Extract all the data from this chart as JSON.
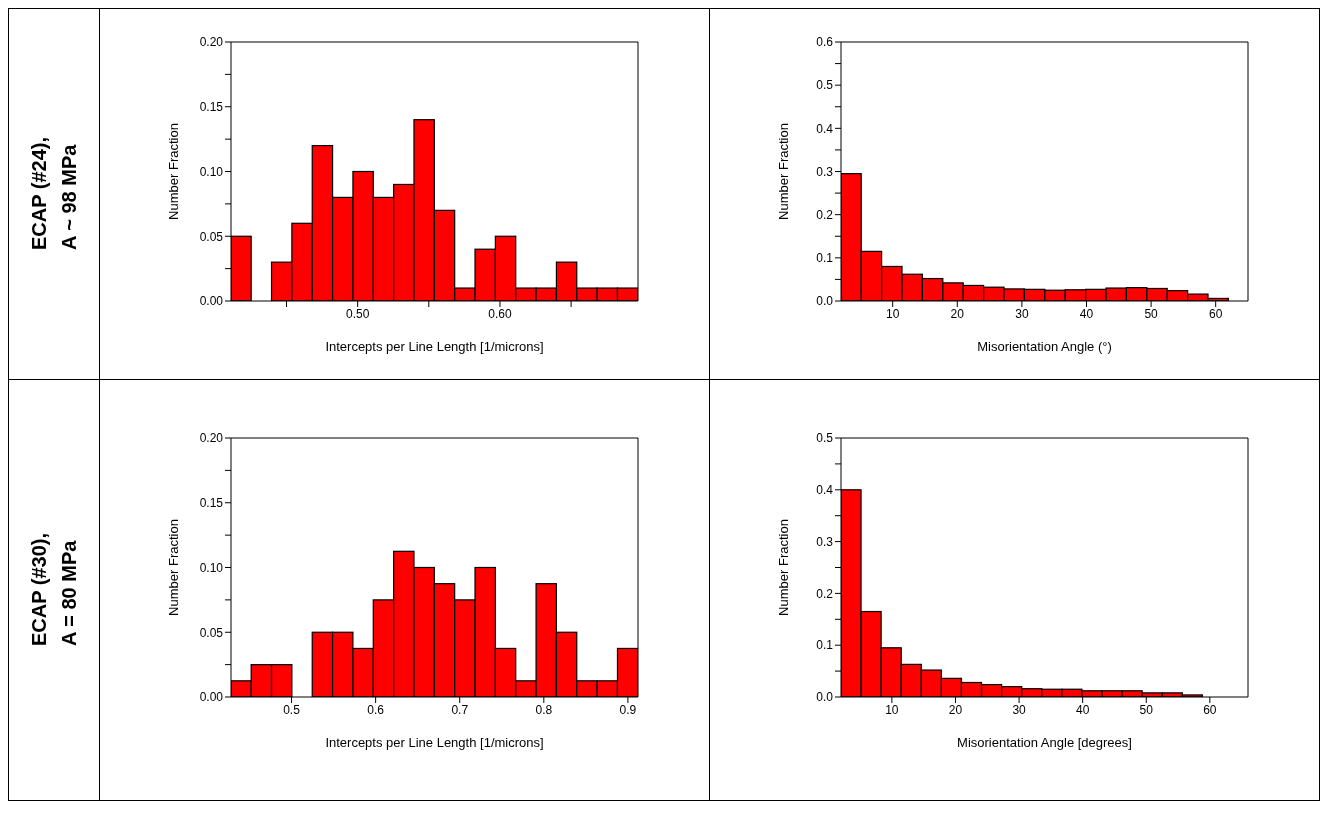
{
  "chart_data": [
    {
      "type": "histogram",
      "xlabel": "Intercepts per Line Length [1/microns]",
      "ylabel": "Number Fraction",
      "annotations": [
        "ECAP (#24),",
        "A ~ 98 MPa"
      ],
      "color": "#ff0000",
      "bins": [
        0.411,
        0.4253,
        0.4396,
        0.4539,
        0.4682,
        0.4825,
        0.4968,
        0.5111,
        0.5254,
        0.5397,
        0.554,
        0.5683,
        0.5826,
        0.5969,
        0.6112,
        0.6255,
        0.6398,
        0.6541,
        0.6684,
        0.6827,
        0.697
      ],
      "values": [
        0.05,
        0,
        0.03,
        0.06,
        0.12,
        0.08,
        0.1,
        0.08,
        0.09,
        0.14,
        0.07,
        0.01,
        0.04,
        0.05,
        0.01,
        0.01,
        0.03,
        0.01,
        0.01,
        0.01
      ],
      "xlim": [
        0.411,
        0.697
      ],
      "xticks": [
        {
          "value": 0.45,
          "label": null
        },
        {
          "value": 0.5,
          "label": "0.50"
        },
        {
          "value": 0.55,
          "label": null
        },
        {
          "value": 0.6,
          "label": "0.60"
        },
        {
          "value": 0.65,
          "label": null
        }
      ],
      "ylim": [
        0,
        0.2
      ],
      "yticks": [
        {
          "value": 0,
          "label": "0.00"
        },
        {
          "value": 0.025,
          "label": null
        },
        {
          "value": 0.05,
          "label": "0.05"
        },
        {
          "value": 0.075,
          "label": null
        },
        {
          "value": 0.1,
          "label": "0.10"
        },
        {
          "value": 0.125,
          "label": null
        },
        {
          "value": 0.15,
          "label": "0.15"
        },
        {
          "value": 0.175,
          "label": null
        },
        {
          "value": 0.2,
          "label": "0.20"
        }
      ]
    },
    {
      "type": "histogram",
      "xlabel": "Misorientation Angle (°)",
      "ylabel": "Number Fraction",
      "color": "#ff0000",
      "bins": [
        2,
        5.158,
        8.316,
        11.474,
        14.632,
        17.789,
        20.947,
        24.105,
        27.263,
        30.421,
        33.579,
        36.737,
        39.895,
        43.053,
        46.211,
        49.368,
        52.526,
        55.684,
        58.842,
        62
      ],
      "values": [
        0.295,
        0.115,
        0.08,
        0.062,
        0.052,
        0.042,
        0.036,
        0.032,
        0.028,
        0.027,
        0.025,
        0.026,
        0.027,
        0.03,
        0.031,
        0.029,
        0.024,
        0.016,
        0.006
      ],
      "xlim": [
        2,
        65
      ],
      "xticks": [
        10,
        20,
        30,
        40,
        50,
        60
      ],
      "ylim": [
        0,
        0.6
      ],
      "yticks": [
        {
          "value": 0,
          "label": "0.0"
        },
        {
          "value": 0.05,
          "label": null
        },
        {
          "value": 0.1,
          "label": "0.1"
        },
        {
          "value": 0.15,
          "label": null
        },
        {
          "value": 0.2,
          "label": "0.2"
        },
        {
          "value": 0.25,
          "label": null
        },
        {
          "value": 0.3,
          "label": "0.3"
        },
        {
          "value": 0.35,
          "label": null
        },
        {
          "value": 0.4,
          "label": "0.4"
        },
        {
          "value": 0.45,
          "label": null
        },
        {
          "value": 0.5,
          "label": "0.5"
        },
        {
          "value": 0.55,
          "label": null
        },
        {
          "value": 0.6,
          "label": "0.6"
        }
      ]
    },
    {
      "type": "histogram",
      "xlabel": "Intercepts per Line Length [1/microns]",
      "ylabel": "Number Fraction",
      "annotations": [
        "ECAP (#30),",
        "A = 80 MPa"
      ],
      "color": "#ff0000",
      "bins": [
        0.428,
        0.4522,
        0.4764,
        0.5006,
        0.5248,
        0.549,
        0.5732,
        0.5974,
        0.6216,
        0.6458,
        0.67,
        0.6942,
        0.7184,
        0.7426,
        0.7668,
        0.791,
        0.8152,
        0.8394,
        0.8636,
        0.8878,
        0.912
      ],
      "values": [
        0.0125,
        0.025,
        0.025,
        0,
        0.05,
        0.05,
        0.0375,
        0.075,
        0.1125,
        0.1,
        0.0875,
        0.075,
        0.1,
        0.0375,
        0.0125,
        0.0875,
        0.05,
        0.0125,
        0.0125,
        0.0375
      ],
      "xlim": [
        0.428,
        0.912
      ],
      "xticks": [
        0.5,
        0.6,
        0.7,
        0.8,
        0.9
      ],
      "ylim": [
        0,
        0.2
      ],
      "yticks": [
        {
          "value": 0,
          "label": "0.00"
        },
        {
          "value": 0.025,
          "label": null
        },
        {
          "value": 0.05,
          "label": "0.05"
        },
        {
          "value": 0.075,
          "label": null
        },
        {
          "value": 0.1,
          "label": "0.10"
        },
        {
          "value": 0.125,
          "label": null
        },
        {
          "value": 0.15,
          "label": "0.15"
        },
        {
          "value": 0.175,
          "label": null
        },
        {
          "value": 0.2,
          "label": "0.20"
        }
      ]
    },
    {
      "type": "histogram",
      "xlabel": "Misorientation Angle [degrees]",
      "ylabel": "Number Fraction",
      "color": "#ff0000",
      "bins": [
        2,
        5.158,
        8.316,
        11.474,
        14.632,
        17.789,
        20.947,
        24.105,
        27.263,
        30.421,
        33.579,
        36.737,
        39.895,
        43.053,
        46.211,
        49.368,
        52.526,
        55.684,
        58.842,
        62
      ],
      "values": [
        0.4,
        0.165,
        0.095,
        0.063,
        0.052,
        0.036,
        0.028,
        0.024,
        0.02,
        0.016,
        0.015,
        0.015,
        0.012,
        0.012,
        0.012,
        0.008,
        0.008,
        0.004,
        null
      ],
      "xlim": [
        2,
        66
      ],
      "xticks": [
        10,
        20,
        30,
        40,
        50,
        60
      ],
      "ylim": [
        0,
        0.5
      ],
      "yticks": [
        {
          "value": 0,
          "label": "0.0"
        },
        {
          "value": 0.05,
          "label": null
        },
        {
          "value": 0.1,
          "label": "0.1"
        },
        {
          "value": 0.15,
          "label": null
        },
        {
          "value": 0.2,
          "label": "0.2"
        },
        {
          "value": 0.25,
          "label": null
        },
        {
          "value": 0.3,
          "label": "0.3"
        },
        {
          "value": 0.35,
          "label": null
        },
        {
          "value": 0.4,
          "label": "0.4"
        },
        {
          "value": 0.45,
          "label": null
        },
        {
          "value": 0.5,
          "label": "0.5"
        }
      ]
    }
  ]
}
